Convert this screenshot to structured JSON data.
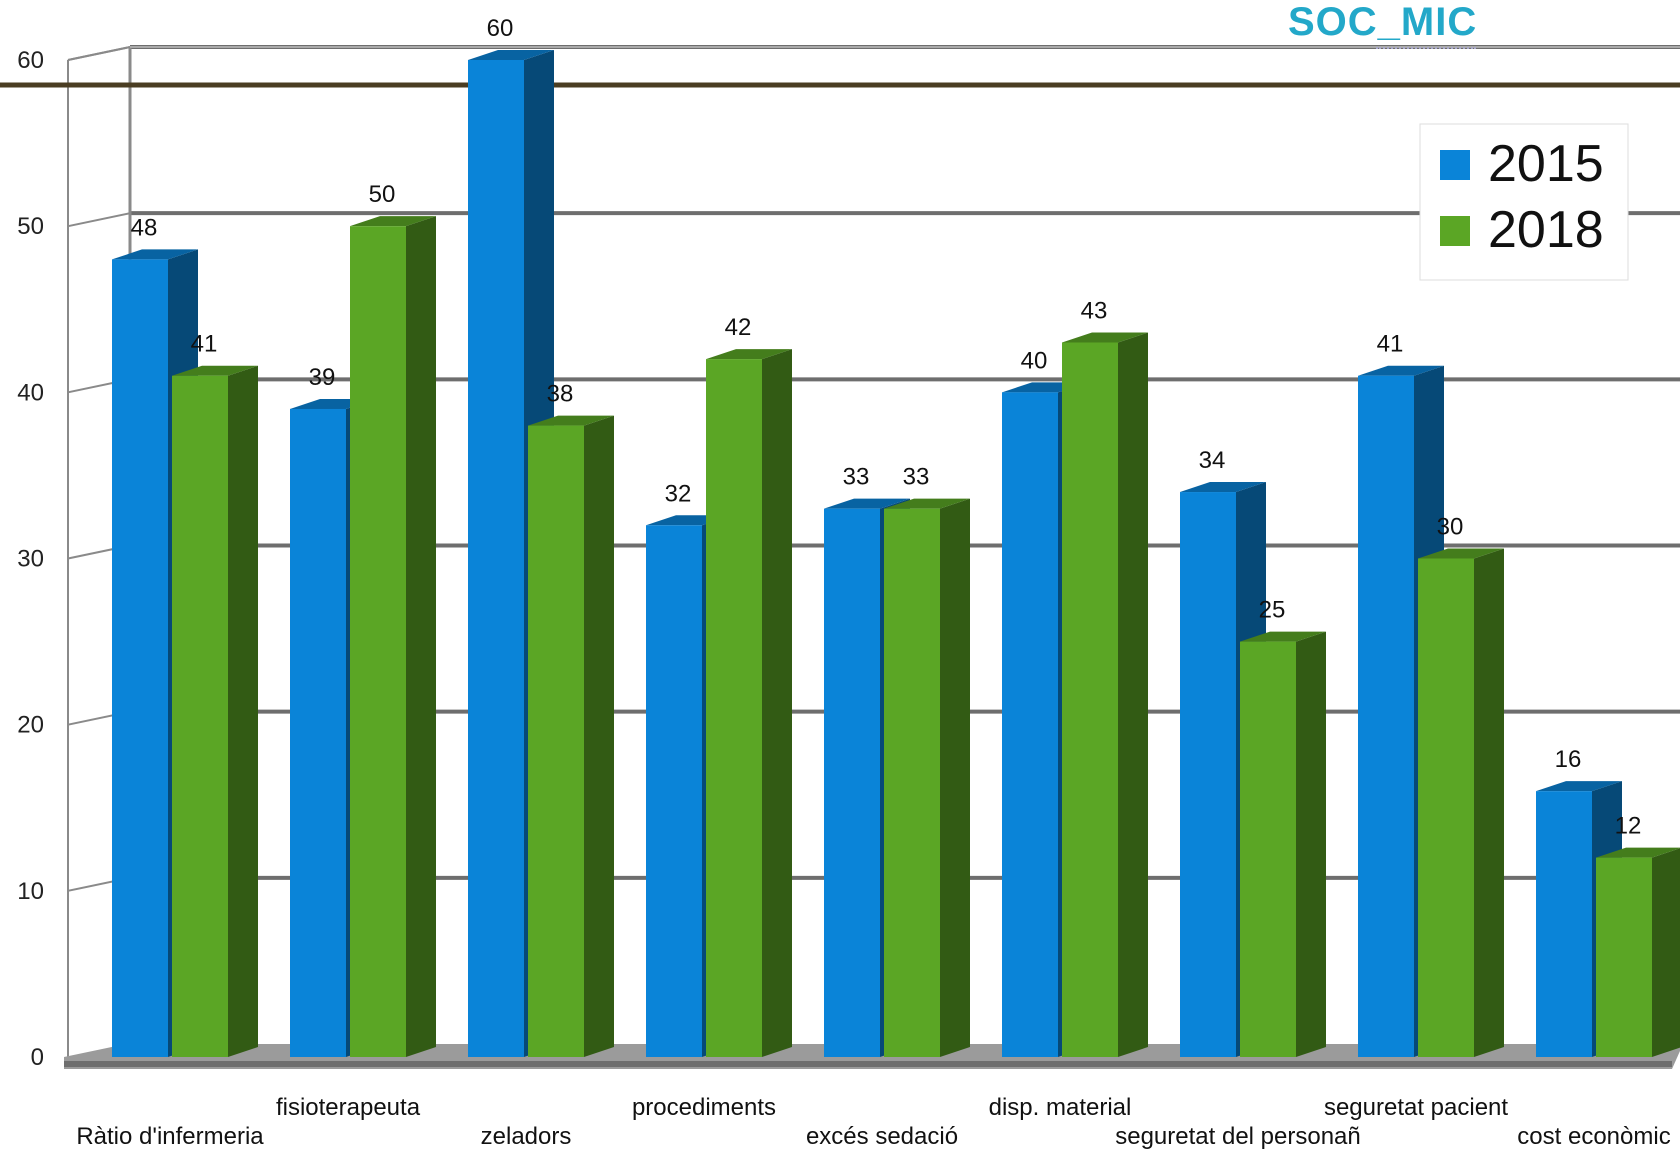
{
  "logo": {
    "text": "SOC_MIC"
  },
  "colors": {
    "series_2015": "#0a84d8",
    "series_2018": "#5ba625",
    "floor": "#9b9b9b",
    "grid": "#6e6e6e",
    "rule": "#4a3d22"
  },
  "chart_data": {
    "type": "bar",
    "title": "",
    "xlabel": "",
    "ylabel": "",
    "ylim": [
      0,
      60
    ],
    "yticks": [
      0,
      10,
      20,
      30,
      40,
      50,
      60
    ],
    "grid": true,
    "legend_position": "top-right",
    "categories": [
      "Ràtio d'infermeria",
      "fisioterapeuta",
      "zeladors",
      "procediments",
      "excés sedació",
      "disp. material",
      "seguretat del personañ",
      "seguretat pacient",
      "cost econòmic"
    ],
    "series": [
      {
        "name": "2015",
        "values": [
          48,
          39,
          60,
          32,
          33,
          40,
          34,
          41,
          16
        ]
      },
      {
        "name": "2018",
        "values": [
          41,
          50,
          38,
          42,
          33,
          43,
          25,
          30,
          12
        ]
      }
    ]
  }
}
